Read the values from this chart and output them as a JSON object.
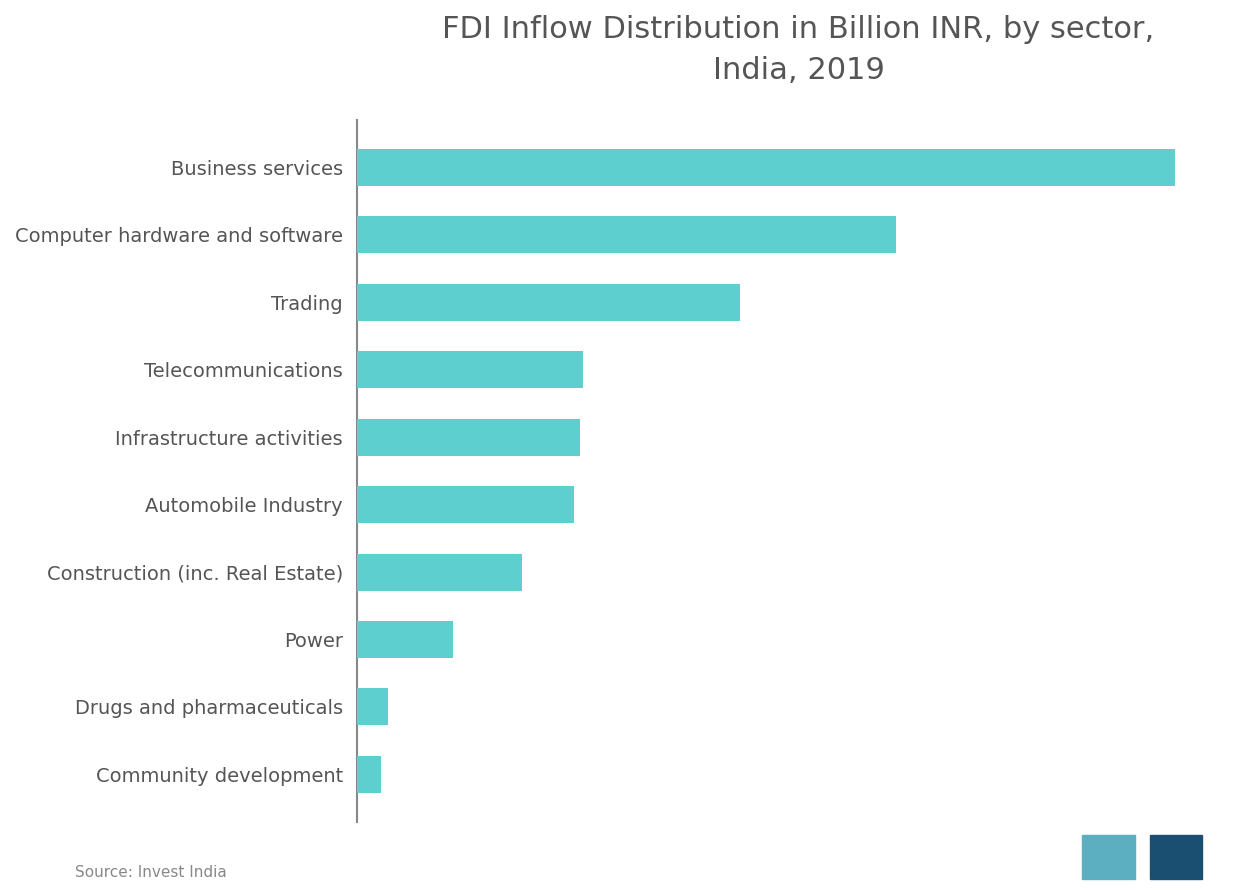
{
  "title": "FDI Inflow Distribution in Billion INR, by sector,\nIndia, 2019",
  "categories": [
    "Business services",
    "Computer hardware and software",
    "Trading",
    "Telecommunications",
    "Infrastructure activities",
    "Automobile Industry",
    "Construction (inc. Real Estate)",
    "Power",
    "Drugs and pharmaceuticals",
    "Community development"
  ],
  "values": [
    470,
    310,
    220,
    130,
    128,
    125,
    95,
    55,
    18,
    14
  ],
  "bar_color": "#5DCFCF",
  "background_color": "#ffffff",
  "title_color": "#555555",
  "label_color": "#555555",
  "title_fontsize": 22,
  "label_fontsize": 14,
  "source_text": "Source: Invest India",
  "source_color": "#888888",
  "spine_color": "#888888",
  "logo_color1": "#5BAFC0",
  "logo_color2": "#1B4F72"
}
